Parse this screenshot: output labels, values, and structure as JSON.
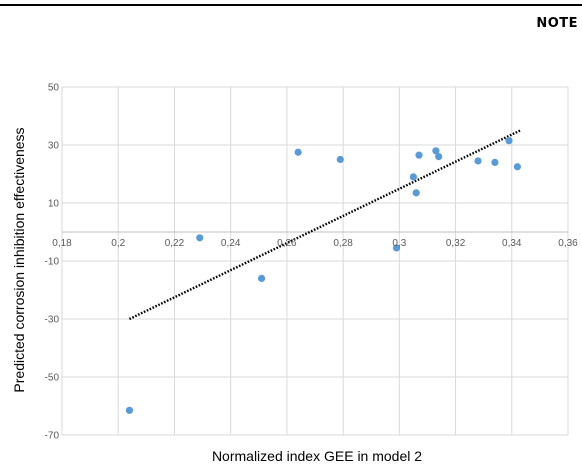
{
  "header": {
    "note_label": "NOTE"
  },
  "chart_data": {
    "type": "scatter",
    "title": "",
    "xlabel": "Normalized index GEE in model 2",
    "ylabel": "Predicted corrosion inhibition effectiveness",
    "xlim": [
      0.18,
      0.36
    ],
    "ylim": [
      -70,
      50
    ],
    "x_ticks": [
      0.18,
      0.2,
      0.22,
      0.24,
      0.26,
      0.28,
      0.3,
      0.32,
      0.34,
      0.36
    ],
    "x_tick_labels": [
      "0,18",
      "0,2",
      "0,22",
      "0,24",
      "0,26",
      "0,28",
      "0,3",
      "0,32",
      "0,34",
      "0,36"
    ],
    "y_ticks": [
      -70,
      -50,
      -30,
      -10,
      10,
      30,
      50
    ],
    "y_tick_labels": [
      "-70",
      "-50",
      "-30",
      "-10",
      "10",
      "30",
      "50"
    ],
    "grid": true,
    "legend": "none",
    "colors": {
      "points": "#5b9bd5",
      "trendline": "#000000",
      "grid": "#d9d9d9",
      "axis": "#bfbfbf"
    },
    "points": [
      {
        "x": 0.204,
        "y": -61.5
      },
      {
        "x": 0.229,
        "y": -2
      },
      {
        "x": 0.251,
        "y": -16
      },
      {
        "x": 0.264,
        "y": 27.5
      },
      {
        "x": 0.279,
        "y": 25
      },
      {
        "x": 0.299,
        "y": -5.5
      },
      {
        "x": 0.305,
        "y": 19
      },
      {
        "x": 0.306,
        "y": 13.5
      },
      {
        "x": 0.307,
        "y": 26.5
      },
      {
        "x": 0.313,
        "y": 28
      },
      {
        "x": 0.314,
        "y": 26
      },
      {
        "x": 0.328,
        "y": 24.5
      },
      {
        "x": 0.334,
        "y": 24
      },
      {
        "x": 0.339,
        "y": 31.5
      },
      {
        "x": 0.342,
        "y": 22.5
      }
    ],
    "trendline": {
      "type": "linear",
      "style": "dotted",
      "x": [
        0.204,
        0.343
      ],
      "y": [
        -30,
        35
      ]
    }
  }
}
